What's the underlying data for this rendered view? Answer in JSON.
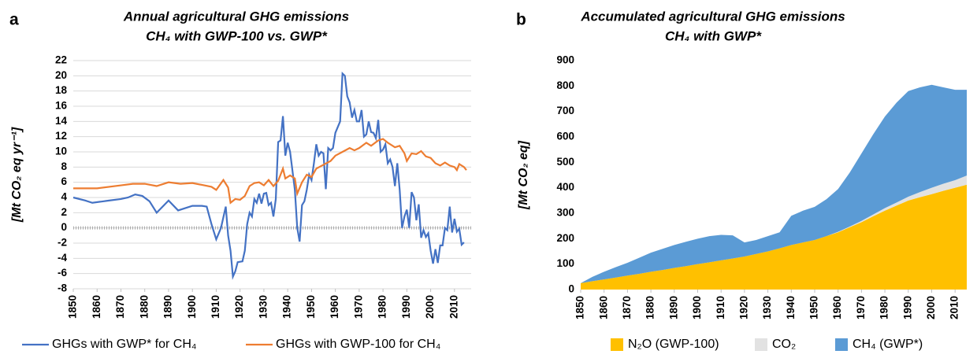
{
  "chart_data": [
    {
      "type": "line",
      "panel_label": "a",
      "title": "Annual agricultural GHG emissions",
      "subtitle": "CH₄ with GWP-100 vs. GWP*",
      "y_label": "[Mt CO₂ eq yr⁻¹]",
      "xlim": [
        1850,
        2017
      ],
      "xticks": [
        1850,
        1860,
        1870,
        1880,
        1890,
        1900,
        1910,
        1920,
        1930,
        1940,
        1950,
        1960,
        1970,
        1980,
        1990,
        2000,
        2010
      ],
      "ylim": [
        -8,
        22
      ],
      "yticks": [
        -8,
        -6,
        -4,
        -2,
        0,
        2,
        4,
        6,
        8,
        10,
        12,
        14,
        16,
        18,
        20,
        22
      ],
      "grid": true,
      "legend": "bottom",
      "series": [
        {
          "name": "GHGs with GWP* for CH₄",
          "color": "#4472c4",
          "x": [
            1850,
            1855,
            1858,
            1865,
            1870,
            1873,
            1876,
            1879,
            1882,
            1885,
            1890,
            1894,
            1900,
            1904,
            1906,
            1908,
            1910,
            1912,
            1914,
            1915,
            1916,
            1917,
            1918,
            1919,
            1921,
            1922,
            1923,
            1924,
            1925,
            1926,
            1927,
            1928,
            1929,
            1930,
            1931,
            1932,
            1933,
            1934,
            1935,
            1936,
            1937,
            1938,
            1939,
            1940,
            1941,
            1942,
            1943,
            1944,
            1945,
            1946,
            1947,
            1948,
            1949,
            1950,
            1951,
            1952,
            1953,
            1954,
            1955,
            1956,
            1957,
            1958,
            1959,
            1960,
            1962,
            1963,
            1964,
            1965,
            1966,
            1967,
            1968,
            1969,
            1970,
            1971,
            1972,
            1973,
            1974,
            1975,
            1976,
            1977,
            1978,
            1979,
            1980,
            1981,
            1982,
            1983,
            1984,
            1985,
            1986,
            1987,
            1988,
            1989,
            1990,
            1991,
            1992,
            1993,
            1994,
            1995,
            1996,
            1997,
            1998,
            1999,
            2000,
            2001,
            2002,
            2003,
            2004,
            2005,
            2006,
            2007,
            2008,
            2009,
            2010,
            2011,
            2012,
            2013,
            2014
          ],
          "values": [
            4,
            3.6,
            3.3,
            3.6,
            3.8,
            4,
            4.4,
            4.2,
            3.5,
            2,
            3.6,
            2.3,
            2.9,
            2.9,
            2.8,
            0.5,
            -1.5,
            0,
            2.8,
            -1,
            -3,
            -6.4,
            -5.7,
            -4.5,
            -4.4,
            -3,
            0.5,
            2,
            1.5,
            3.8,
            3.3,
            4.5,
            3.2,
            4.5,
            4.6,
            3,
            3.3,
            1.5,
            3.8,
            11.3,
            11.5,
            14.7,
            9.5,
            11.2,
            10,
            7.5,
            5,
            0,
            -1.8,
            3,
            3.5,
            5,
            7,
            6.3,
            8.5,
            11,
            9.5,
            10,
            9.8,
            5.1,
            10.5,
            10.2,
            10.5,
            12.5,
            14,
            20.3,
            20,
            17.3,
            16.5,
            14.5,
            15.5,
            14,
            14,
            15.5,
            12,
            12.3,
            14,
            12.6,
            12.5,
            11.8,
            14.2,
            10,
            10.3,
            11,
            8.5,
            9,
            8,
            5.5,
            8.5,
            5,
            0,
            1.5,
            2.4,
            0,
            4.7,
            4,
            1,
            3.1,
            -1.3,
            -0.3,
            -1.2,
            -0.7,
            -3,
            -4.7,
            -2.8,
            -4.6,
            -2.3,
            -2.3,
            0,
            -0.3,
            2.8,
            -0.6,
            1.2,
            -0.5,
            -0.1,
            -2.2,
            -1.9
          ]
        },
        {
          "name": "GHGs with GWP-100 for CH₄",
          "color": "#ed7d31",
          "x": [
            1850,
            1860,
            1870,
            1875,
            1880,
            1885,
            1890,
            1895,
            1900,
            1905,
            1908,
            1910,
            1913,
            1915,
            1916,
            1918,
            1920,
            1922,
            1924,
            1926,
            1928,
            1930,
            1932,
            1934,
            1936,
            1938,
            1939,
            1941,
            1943,
            1944,
            1946,
            1948,
            1950,
            1952,
            1955,
            1958,
            1960,
            1963,
            1966,
            1968,
            1970,
            1973,
            1975,
            1978,
            1980,
            1982,
            1985,
            1987,
            1989,
            1990,
            1992,
            1994,
            1996,
            1998,
            2000,
            2002,
            2004,
            2006,
            2008,
            2010,
            2011,
            2012,
            2014,
            2015
          ],
          "values": [
            5.2,
            5.2,
            5.6,
            5.8,
            5.8,
            5.5,
            6,
            5.8,
            5.9,
            5.6,
            5.4,
            5,
            6.3,
            5.3,
            3.3,
            3.8,
            3.7,
            4.2,
            5.5,
            5.9,
            6,
            5.6,
            6.3,
            5.5,
            6.2,
            7.8,
            6.5,
            6.9,
            6.5,
            4.5,
            6,
            7,
            6.7,
            7.8,
            8.3,
            8.8,
            9.5,
            10,
            10.5,
            10.2,
            10.5,
            11.2,
            10.8,
            11.5,
            11.7,
            11.2,
            10.6,
            10.8,
            9.8,
            8.8,
            9.8,
            9.7,
            10.1,
            9.4,
            9.2,
            8.5,
            8.2,
            8.6,
            8.2,
            8,
            7.6,
            8.4,
            8,
            7.6
          ]
        }
      ]
    },
    {
      "type": "stacked_area",
      "panel_label": "b",
      "title": "Accumulated agricultural GHG emissions",
      "subtitle": "CH₄ with GWP*",
      "y_label": "[Mt CO₂ eq]",
      "xlim": [
        1850,
        2016
      ],
      "xticks": [
        1850,
        1860,
        1870,
        1880,
        1890,
        1900,
        1910,
        1920,
        1930,
        1940,
        1950,
        1960,
        1970,
        1980,
        1990,
        2000,
        2010
      ],
      "ylim": [
        0,
        900
      ],
      "yticks": [
        0,
        100,
        200,
        300,
        400,
        500,
        600,
        700,
        800,
        900
      ],
      "grid": false,
      "legend": "bottom",
      "x": [
        1850,
        1855,
        1860,
        1865,
        1870,
        1875,
        1880,
        1885,
        1890,
        1895,
        1900,
        1905,
        1910,
        1915,
        1920,
        1925,
        1930,
        1935,
        1940,
        1945,
        1950,
        1955,
        1960,
        1965,
        1970,
        1975,
        1980,
        1985,
        1990,
        1995,
        2000,
        2005,
        2010,
        2015
      ],
      "series": [
        {
          "name": "N₂O (GWP-100)",
          "color": "#ffc000",
          "values": [
            25,
            33,
            40,
            47,
            55,
            62,
            70,
            77,
            85,
            92,
            100,
            107,
            115,
            122,
            130,
            140,
            150,
            162,
            175,
            185,
            195,
            210,
            225,
            245,
            265,
            288,
            310,
            330,
            350,
            363,
            375,
            388,
            400,
            412
          ]
        },
        {
          "name": "CO₂",
          "color": "#e2e2e2",
          "values": [
            0,
            0,
            0,
            0,
            0,
            0,
            0,
            0,
            0,
            0,
            0,
            0,
            0,
            0,
            0,
            0,
            0,
            0,
            0,
            0,
            0,
            0,
            2,
            3,
            5,
            7,
            10,
            12,
            15,
            20,
            25,
            28,
            30,
            36
          ]
        },
        {
          "name": "CH₄ (GWP*)",
          "color": "#5b9bd5",
          "values": [
            0,
            17,
            30,
            41,
            50,
            63,
            75,
            83,
            90,
            96,
            100,
            103,
            100,
            91,
            55,
            55,
            60,
            63,
            115,
            125,
            130,
            145,
            168,
            212,
            265,
            315,
            360,
            393,
            415,
            412,
            405,
            379,
            355,
            337
          ]
        }
      ]
    }
  ]
}
